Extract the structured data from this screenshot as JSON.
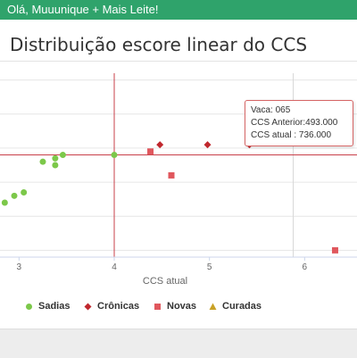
{
  "header": {
    "greeting": "Olá, Muuunique + Mais Leite!"
  },
  "page": {
    "title": "Distribuição escore linear do CCS"
  },
  "chart_data": {
    "type": "scatter",
    "xlabel": "CCS atual",
    "ylabel": "",
    "title": "Distribuição escore linear do CCS",
    "xlim": [
      2.8,
      6.55
    ],
    "ylim": [
      2.9,
      5.6
    ],
    "x_ticks": [
      3,
      4,
      5,
      6
    ],
    "grid": true,
    "reference_lines": {
      "x": 4.0,
      "y": 4.4
    },
    "series": [
      {
        "name": "Sadias",
        "color": "#7cc84a",
        "marker": "circle",
        "points": [
          [
            2.85,
            3.7
          ],
          [
            2.95,
            3.8
          ],
          [
            3.05,
            3.85
          ],
          [
            3.25,
            4.3
          ],
          [
            3.38,
            4.25
          ],
          [
            3.38,
            4.35
          ],
          [
            3.46,
            4.4
          ],
          [
            4.0,
            4.4
          ]
        ]
      },
      {
        "name": "Crônicas",
        "color": "#c0272d",
        "marker": "diamond",
        "points": [
          [
            4.48,
            4.55
          ],
          [
            4.98,
            4.55
          ],
          [
            5.42,
            4.55
          ],
          [
            5.88,
            4.9
          ],
          [
            6.2,
            4.6
          ]
        ]
      },
      {
        "name": "Novas",
        "color": "#e0575d",
        "marker": "square",
        "points": [
          [
            4.38,
            4.45
          ],
          [
            4.6,
            4.1
          ],
          [
            6.32,
            3.0
          ]
        ]
      },
      {
        "name": "Curadas",
        "color": "#c9a227",
        "marker": "triangle",
        "points": []
      }
    ],
    "tooltip": {
      "vaca": "Vaca: 065",
      "anterior": "CCS Anterior:493.000",
      "atual": "CCS atual : 736.000"
    }
  }
}
